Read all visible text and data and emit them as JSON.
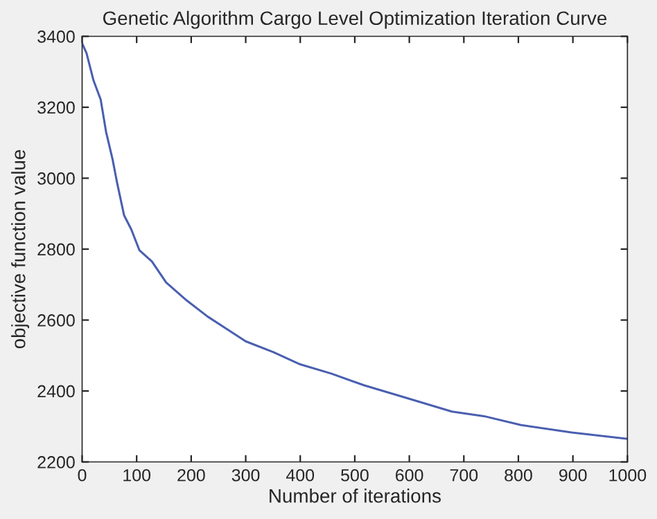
{
  "chart_data": {
    "type": "line",
    "title": "Genetic Algorithm Cargo Level Optimization Iteration Curve",
    "xlabel": "Number of iterations",
    "ylabel": "objective function value",
    "x": [
      0,
      8,
      21,
      34,
      44,
      56,
      64,
      77,
      90,
      105,
      128,
      154,
      192,
      230,
      260,
      300,
      350,
      400,
      457,
      517,
      602,
      678,
      737,
      805,
      898,
      1000
    ],
    "series": [
      {
        "color": "#4a5fb0",
        "values": [
          3380,
          3353,
          3275,
          3222,
          3130,
          3052,
          2988,
          2895,
          2856,
          2797,
          2765,
          2706,
          2655,
          2610,
          2580,
          2540,
          2510,
          2475,
          2449,
          2416,
          2377,
          2342,
          2329,
          2304,
          2283,
          2265
        ]
      }
    ],
    "xlim": [
      0,
      1000
    ],
    "ylim": [
      2200,
      3400
    ],
    "xticks": [
      0,
      100,
      200,
      300,
      400,
      500,
      600,
      700,
      800,
      900,
      1000
    ],
    "yticks": [
      2200,
      2400,
      2600,
      2800,
      3000,
      3200,
      3400
    ],
    "grid": false,
    "legend": false,
    "marker": "none",
    "line_style": "solid"
  }
}
